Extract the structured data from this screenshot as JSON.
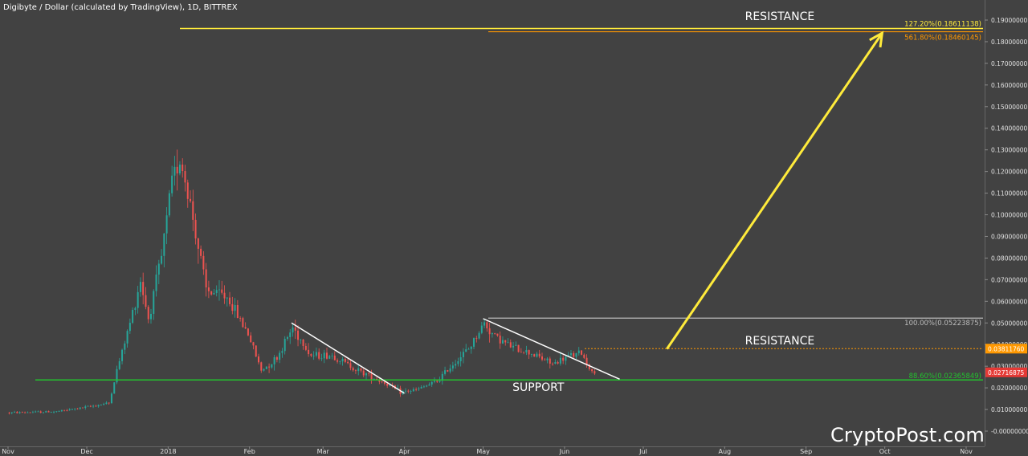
{
  "header": {
    "title": "Digibyte / Dollar (calculated by TradingView), 1D, BITTREX"
  },
  "watermark": "CryptoPost.com",
  "colors": {
    "background": "#424242",
    "up_candle": "#26a69a",
    "down_candle": "#ef5350",
    "support_line": "#22c32e",
    "resistance_line": "#ffeb3b",
    "fib_orange": "#ff9800",
    "trend_line": "#ffffff",
    "label_current": "#e53935",
    "label_orange": "#ff9800"
  },
  "chart_data": {
    "type": "candlestick",
    "ylim": [
      0,
      0.195
    ],
    "y_ticks": [
      "0.19000000",
      "0.18000000",
      "0.17000000",
      "0.16000000",
      "0.15000000",
      "0.14000000",
      "0.13000000",
      "0.12000000",
      "0.11000000",
      "0.10000000",
      "0.09000000",
      "0.08000000",
      "0.07000000",
      "0.06000000",
      "0.05000000",
      "0.04000000",
      "0.03000000",
      "0.02000000",
      "0.01000000",
      "-0.00000000"
    ],
    "y_tick_values": [
      0.19,
      0.18,
      0.17,
      0.16,
      0.15,
      0.14,
      0.13,
      0.12,
      0.11,
      0.1,
      0.09,
      0.08,
      0.07,
      0.06,
      0.05,
      0.04,
      0.03,
      0.02,
      0.01,
      0.0
    ],
    "x_labels": [
      {
        "label": "Nov",
        "date": "2017-11-01"
      },
      {
        "label": "Dec",
        "date": "2017-12-01"
      },
      {
        "label": "2018",
        "date": "2018-01-01"
      },
      {
        "label": "Feb",
        "date": "2018-02-01"
      },
      {
        "label": "Mar",
        "date": "2018-03-01"
      },
      {
        "label": "Apr",
        "date": "2018-04-01"
      },
      {
        "label": "May",
        "date": "2018-05-01"
      },
      {
        "label": "Jun",
        "date": "2018-06-01"
      },
      {
        "label": "Jul",
        "date": "2018-07-01"
      },
      {
        "label": "Aug",
        "date": "2018-08-01"
      },
      {
        "label": "Sep",
        "date": "2018-09-01"
      },
      {
        "label": "Oct",
        "date": "2018-10-01"
      },
      {
        "label": "Nov",
        "date": "2018-11-01"
      }
    ],
    "price_keypoints": [
      {
        "date": "2017-11-01",
        "close": 0.0085
      },
      {
        "date": "2017-11-20",
        "close": 0.009
      },
      {
        "date": "2017-12-01",
        "close": 0.011
      },
      {
        "date": "2017-12-10",
        "close": 0.013
      },
      {
        "date": "2017-12-13",
        "close": 0.028
      },
      {
        "date": "2017-12-18",
        "close": 0.05
      },
      {
        "date": "2017-12-22",
        "close": 0.07
      },
      {
        "date": "2017-12-25",
        "close": 0.052
      },
      {
        "date": "2017-12-30",
        "close": 0.08
      },
      {
        "date": "2018-01-03",
        "close": 0.115
      },
      {
        "date": "2018-01-06",
        "close": 0.127
      },
      {
        "date": "2018-01-10",
        "close": 0.105
      },
      {
        "date": "2018-01-16",
        "close": 0.065
      },
      {
        "date": "2018-01-24",
        "close": 0.062
      },
      {
        "date": "2018-02-01",
        "close": 0.045
      },
      {
        "date": "2018-02-06",
        "close": 0.028
      },
      {
        "date": "2018-02-12",
        "close": 0.034
      },
      {
        "date": "2018-02-18",
        "close": 0.048
      },
      {
        "date": "2018-02-25",
        "close": 0.035
      },
      {
        "date": "2018-03-05",
        "close": 0.035
      },
      {
        "date": "2018-03-15",
        "close": 0.028
      },
      {
        "date": "2018-03-24",
        "close": 0.023
      },
      {
        "date": "2018-03-31",
        "close": 0.018
      },
      {
        "date": "2018-04-06",
        "close": 0.019
      },
      {
        "date": "2018-04-14",
        "close": 0.023
      },
      {
        "date": "2018-04-20",
        "close": 0.031
      },
      {
        "date": "2018-04-26",
        "close": 0.038
      },
      {
        "date": "2018-05-02",
        "close": 0.05
      },
      {
        "date": "2018-05-05",
        "close": 0.045
      },
      {
        "date": "2018-05-12",
        "close": 0.039
      },
      {
        "date": "2018-05-20",
        "close": 0.036
      },
      {
        "date": "2018-05-28",
        "close": 0.031
      },
      {
        "date": "2018-06-04",
        "close": 0.035
      },
      {
        "date": "2018-06-08",
        "close": 0.036
      },
      {
        "date": "2018-06-12",
        "close": 0.0272
      }
    ],
    "levels": [
      {
        "name": "resistance_top",
        "value": 0.18611138,
        "label": "127.20%(0.18611138)"
      },
      {
        "name": "fib_561",
        "value": 0.18460145,
        "label": "561.80%(0.18460145)"
      },
      {
        "name": "fib_100",
        "value": 0.05223875,
        "label": "100.00%(0.05223875)"
      },
      {
        "name": "resistance_mid",
        "value": 0.0381176
      },
      {
        "name": "support",
        "value": 0.02365849,
        "label": "88.60%(0.02365849)"
      }
    ],
    "price_labels": [
      {
        "value": 0.0381176,
        "text": "0.03811760"
      },
      {
        "value": 0.02716875,
        "text": "0.02716875"
      }
    ],
    "trend_lines": [
      {
        "from": {
          "date": "2018-02-17",
          "value": 0.05
        },
        "to": {
          "date": "2018-04-01",
          "value": 0.0175
        }
      },
      {
        "from": {
          "date": "2018-05-01",
          "value": 0.052
        },
        "to": {
          "date": "2018-06-22",
          "value": 0.024
        }
      }
    ],
    "arrow": {
      "from": {
        "date": "2018-07-10",
        "value": 0.038
      },
      "to": {
        "date": "2018-09-30",
        "value": 0.184
      }
    },
    "annotations": [
      {
        "text": "RESISTANCE",
        "date": "2018-08-22",
        "value": 0.19
      },
      {
        "text": "RESISTANCE",
        "date": "2018-08-22",
        "value": 0.04
      },
      {
        "text": "SUPPORT",
        "date": "2018-05-22",
        "value": 0.0185
      }
    ]
  }
}
